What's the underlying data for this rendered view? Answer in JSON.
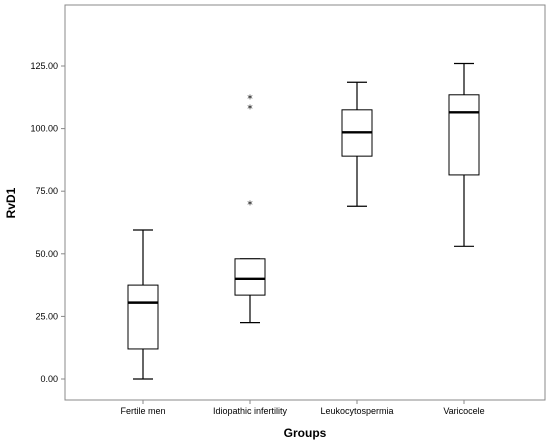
{
  "chart_data": {
    "type": "boxplot",
    "xlabel": "Groups",
    "ylabel": "RvD1",
    "ylim": [
      -10,
      150
    ],
    "yticks": [
      "0.00",
      "25.00",
      "50.00",
      "75.00",
      "100.00",
      "125.00"
    ],
    "grid": false,
    "categories": [
      "Fertile men",
      "Idiopathic infertility",
      "Leukocytospermia",
      "Varicocele"
    ],
    "boxes": [
      {
        "category": "Fertile men",
        "whisker_low": 0,
        "q1": 12,
        "median": 30.5,
        "q3": 37.5,
        "whisker_high": 59.5,
        "outliers": []
      },
      {
        "category": "Idiopathic infertility",
        "whisker_low": 22.5,
        "q1": 33.5,
        "median": 40,
        "q3": 48,
        "whisker_high": 48,
        "outliers": [
          70,
          108.5,
          112.5
        ]
      },
      {
        "category": "Leukocytospermia",
        "whisker_low": 69,
        "q1": 89,
        "median": 98.5,
        "q3": 107.5,
        "whisker_high": 118.5,
        "outliers": []
      },
      {
        "category": "Varicocele",
        "whisker_low": 53,
        "q1": 81.5,
        "median": 106.5,
        "q3": 113.5,
        "whisker_high": 126,
        "outliers": []
      }
    ],
    "outlier_marker": "*",
    "colors": {
      "box_fill": "#ffffff",
      "stroke": "#000000",
      "axis": "#888888"
    }
  }
}
